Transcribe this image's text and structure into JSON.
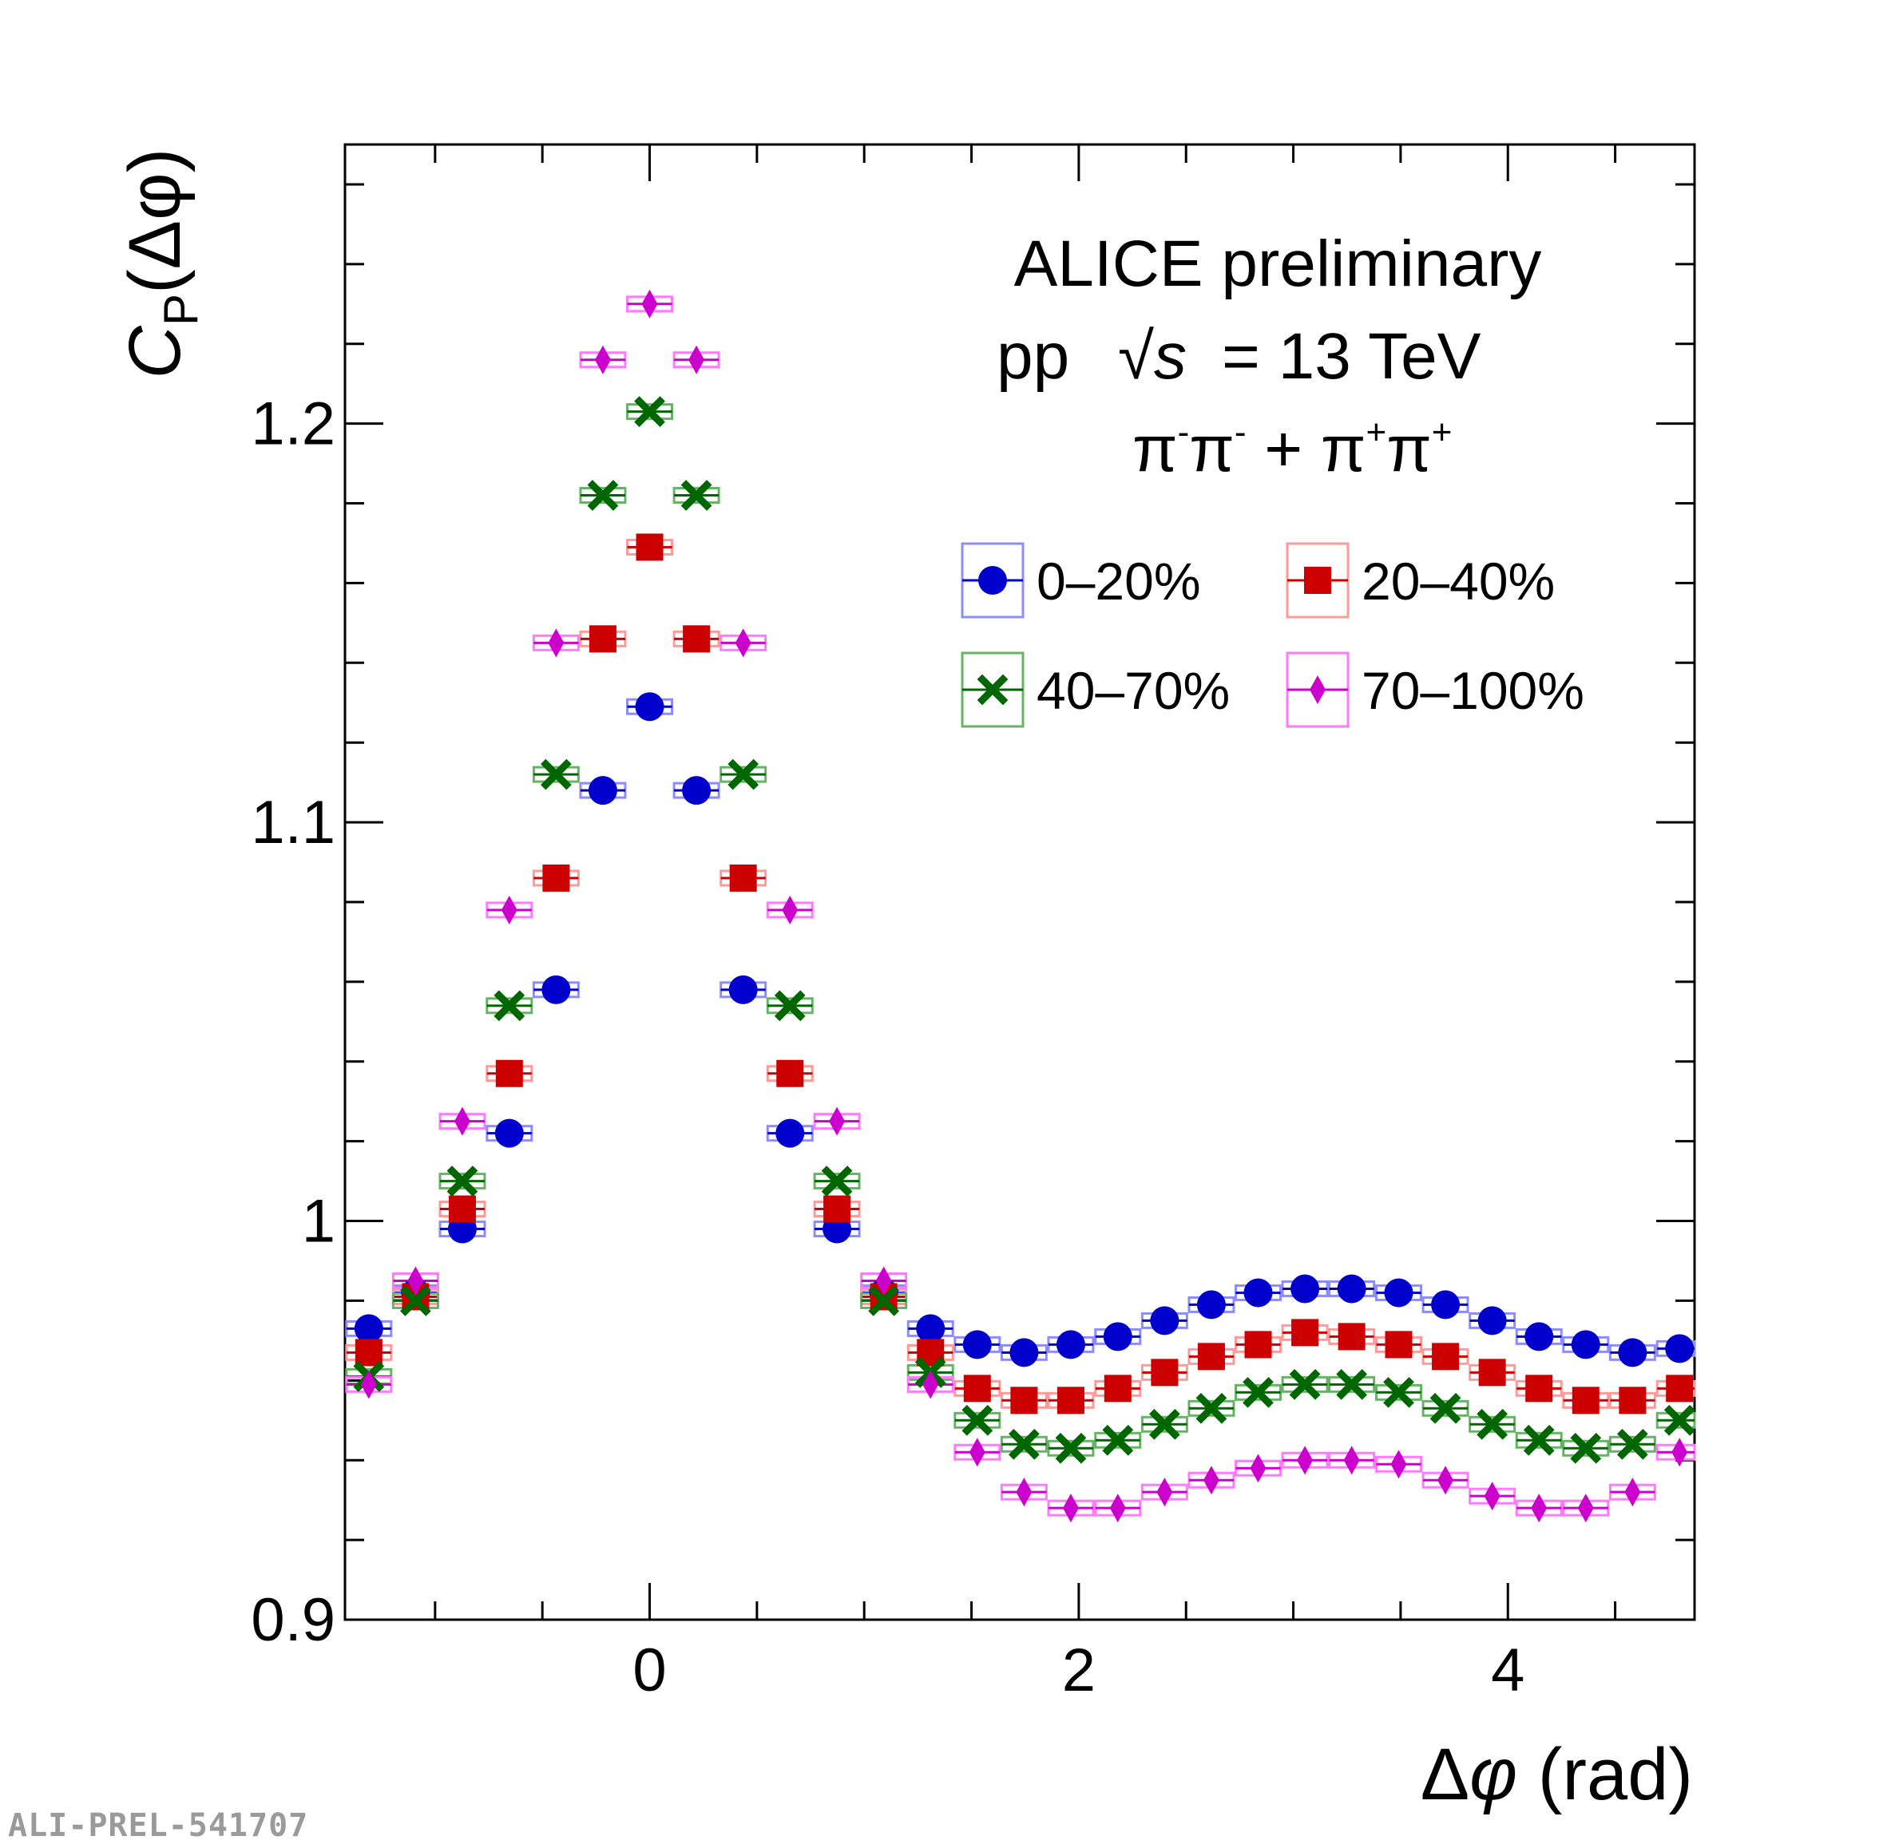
{
  "chart_data": {
    "type": "scatter",
    "title": "ALICE preliminary",
    "annotations": [
      "ALICE preliminary",
      "pp  √s = 13 TeV",
      "π⁻π⁻ + π⁺π⁺"
    ],
    "xlabel": "Δφ (rad)",
    "ylabel": "C_P(Δφ)",
    "xlim": [
      -1.42,
      4.87
    ],
    "ylim": [
      0.9,
      1.27
    ],
    "x_ticks": [
      0,
      2,
      4
    ],
    "x_tick_labels": [
      "0",
      "2",
      "4"
    ],
    "y_ticks": [
      0.9,
      1.0,
      1.1,
      1.2
    ],
    "y_tick_labels": [
      "0.9",
      "1",
      "1.1",
      "1.2"
    ],
    "legend_position": "top-right",
    "x": [
      -1.309,
      -1.091,
      -0.873,
      -0.654,
      -0.436,
      -0.218,
      0.0,
      0.218,
      0.436,
      0.654,
      0.873,
      1.091,
      1.309,
      1.527,
      1.745,
      1.963,
      2.182,
      2.4,
      2.618,
      2.836,
      3.054,
      3.272,
      3.491,
      3.709,
      3.927,
      4.145,
      4.363,
      4.581,
      4.8
    ],
    "series": [
      {
        "name": "0–20%",
        "color": "#0000cc",
        "marker": "circle",
        "box_color": "#8c8cff",
        "values": [
          0.973,
          0.982,
          0.998,
          1.022,
          1.058,
          1.108,
          1.129,
          1.108,
          1.058,
          1.022,
          0.998,
          0.982,
          0.973,
          0.969,
          0.967,
          0.969,
          0.971,
          0.975,
          0.979,
          0.982,
          0.983,
          0.983,
          0.982,
          0.979,
          0.975,
          0.971,
          0.969,
          0.967,
          0.968
        ]
      },
      {
        "name": "20–40%",
        "color": "#cc0000",
        "marker": "square",
        "box_color": "#ff9a9a",
        "values": [
          0.967,
          0.981,
          1.003,
          1.037,
          1.086,
          1.146,
          1.169,
          1.146,
          1.086,
          1.037,
          1.003,
          0.981,
          0.967,
          0.958,
          0.955,
          0.955,
          0.958,
          0.962,
          0.966,
          0.969,
          0.972,
          0.971,
          0.969,
          0.966,
          0.962,
          0.958,
          0.955,
          0.955,
          0.958
        ]
      },
      {
        "name": "40–70%",
        "color": "#006600",
        "marker": "cross",
        "box_color": "#66b366",
        "values": [
          0.961,
          0.98,
          1.01,
          1.054,
          1.112,
          1.182,
          1.203,
          1.182,
          1.112,
          1.054,
          1.01,
          0.98,
          0.962,
          0.95,
          0.944,
          0.943,
          0.945,
          0.949,
          0.953,
          0.957,
          0.959,
          0.959,
          0.957,
          0.953,
          0.949,
          0.945,
          0.943,
          0.944,
          0.95
        ]
      },
      {
        "name": "70–100%",
        "color": "#cc00cc",
        "marker": "diamond",
        "box_color": "#ff7aff",
        "values": [
          0.959,
          0.985,
          1.025,
          1.078,
          1.145,
          1.216,
          1.23,
          1.216,
          1.145,
          1.078,
          1.025,
          0.985,
          0.959,
          0.942,
          0.932,
          0.928,
          0.928,
          0.932,
          0.935,
          0.938,
          0.94,
          0.94,
          0.939,
          0.935,
          0.931,
          0.928,
          0.928,
          0.932,
          0.942
        ]
      }
    ]
  },
  "text": {
    "experiment": "ALICE preliminary",
    "system_pp": "pp",
    "sqrt_symbol": "√",
    "s_var": "s",
    "energy": "= 13 TeV",
    "pi": "π",
    "minus": "-",
    "plus": "+",
    "plus_sign": " + ",
    "y_C": "C",
    "y_P": "P",
    "y_rest": "(Δφ)",
    "x_delta": "Δ",
    "x_phi": "φ",
    "x_unit": " (rad)",
    "watermark": "ALI-PREL-541707"
  }
}
